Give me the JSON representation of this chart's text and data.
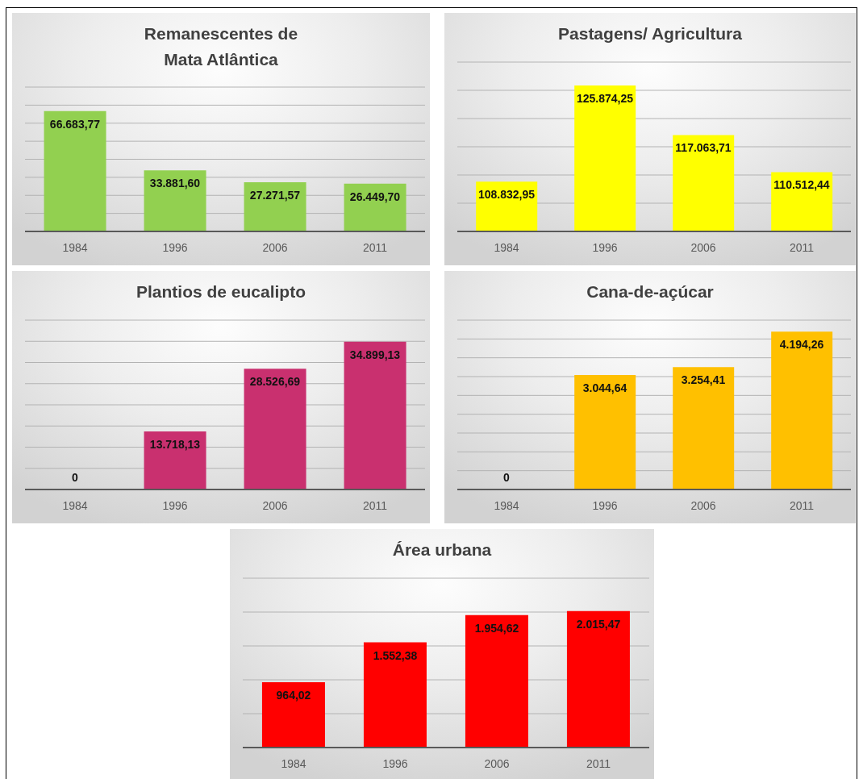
{
  "chart_data": [
    {
      "type": "bar",
      "title": "Remanescentes de\nMata Atlântica",
      "categories": [
        "1984",
        "1996",
        "2006",
        "2011"
      ],
      "values": [
        66683.77,
        33881.6,
        27271.57,
        26449.7
      ],
      "value_labels": [
        "66.683,77",
        "33.881,60",
        "27.271,57",
        "26.449,70"
      ],
      "color": "#92d050",
      "ylim": [
        0,
        80000
      ],
      "yticks": [
        {
          "value": 0,
          "label": null
        },
        {
          "value": 10000,
          "label": null
        },
        {
          "value": 20000,
          "label": null
        },
        {
          "value": 30000,
          "label": null
        },
        {
          "value": 40000,
          "label": null
        },
        {
          "value": 50000,
          "label": null
        },
        {
          "value": 60000,
          "label": null
        },
        {
          "value": 70000,
          "label": null
        },
        {
          "value": 80000,
          "label": null
        }
      ],
      "grid": "y",
      "tick_labels": "x"
    },
    {
      "type": "bar",
      "title": "Pastagens/ Agricultura",
      "categories": [
        "1984",
        "1996",
        "2006",
        "2011"
      ],
      "values": [
        108832.95,
        125874.25,
        117063.71,
        110512.44
      ],
      "value_labels": [
        "108.832,95",
        "125.874,25",
        "117.063,71",
        "110.512,44"
      ],
      "color": "#ffff00",
      "ylim": [
        100000,
        130000
      ],
      "yticks": [
        {
          "value": 100000,
          "label": null
        },
        {
          "value": 105000,
          "label": null
        },
        {
          "value": 110000,
          "label": null
        },
        {
          "value": 115000,
          "label": null
        },
        {
          "value": 120000,
          "label": null
        },
        {
          "value": 125000,
          "label": null
        },
        {
          "value": 130000,
          "label": null
        }
      ],
      "grid": "y",
      "tick_labels": "x"
    },
    {
      "type": "bar",
      "title": "Plantios de eucalipto",
      "categories": [
        "1984",
        "1996",
        "2006",
        "2011"
      ],
      "values": [
        0,
        13718.13,
        28526.69,
        34899.13
      ],
      "value_labels": [
        "0",
        "13.718,13",
        "28.526,69",
        "34.899,13"
      ],
      "color": "#c9306f",
      "ylim": [
        0,
        40000
      ],
      "yticks": [
        {
          "value": 0,
          "label": null
        },
        {
          "value": 5000,
          "label": null
        },
        {
          "value": 10000,
          "label": null
        },
        {
          "value": 15000,
          "label": null
        },
        {
          "value": 20000,
          "label": null
        },
        {
          "value": 25000,
          "label": null
        },
        {
          "value": 30000,
          "label": null
        },
        {
          "value": 35000,
          "label": null
        },
        {
          "value": 40000,
          "label": null
        }
      ],
      "grid": "y",
      "tick_labels": "x"
    },
    {
      "type": "bar",
      "title": "Cana-de-açúcar",
      "categories": [
        "1984",
        "1996",
        "2006",
        "2011"
      ],
      "values": [
        0,
        3044.64,
        3254.41,
        4194.26
      ],
      "value_labels": [
        "0",
        "3.044,64",
        "3.254,41",
        "4.194,26"
      ],
      "color": "#ffc000",
      "ylim": [
        0,
        4500
      ],
      "yticks": [
        {
          "value": 0,
          "label": null
        },
        {
          "value": 500,
          "label": null
        },
        {
          "value": 1000,
          "label": null
        },
        {
          "value": 1500,
          "label": null
        },
        {
          "value": 2000,
          "label": null
        },
        {
          "value": 2500,
          "label": null
        },
        {
          "value": 3000,
          "label": null
        },
        {
          "value": 3500,
          "label": null
        },
        {
          "value": 4000,
          "label": null
        },
        {
          "value": 4500,
          "label": null
        }
      ],
      "grid": "y",
      "tick_labels": "x"
    },
    {
      "type": "bar",
      "title": "Área urbana",
      "categories": [
        "1984",
        "1996",
        "2006",
        "2011"
      ],
      "values": [
        964.02,
        1552.38,
        1954.62,
        2015.47
      ],
      "value_labels": [
        "964,02",
        "1.552,38",
        "1.954,62",
        "2.015,47"
      ],
      "color": "#ff0000",
      "ylim": [
        0,
        2500
      ],
      "yticks": [
        {
          "value": 0,
          "label": null
        },
        {
          "value": 500,
          "label": null
        },
        {
          "value": 1000,
          "label": null
        },
        {
          "value": 1500,
          "label": null
        },
        {
          "value": 2000,
          "label": null
        },
        {
          "value": 2500,
          "label": null
        }
      ],
      "grid": "y",
      "tick_labels": "x"
    }
  ]
}
